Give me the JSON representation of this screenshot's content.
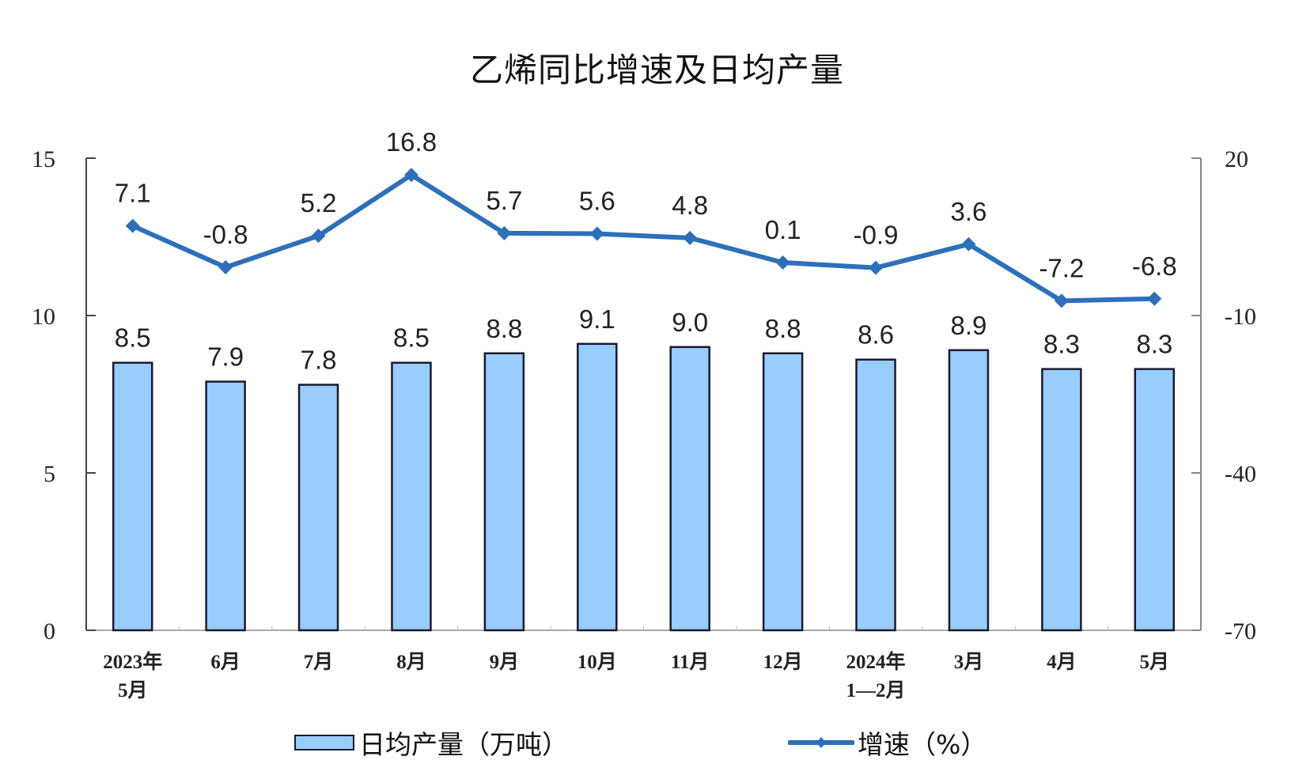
{
  "title": "乙烯同比增速及日均产量",
  "colors": {
    "bar_fill": "#99ccff",
    "bar_stroke": "#1a1a2e",
    "line": "#2e6fba",
    "axis": "#444444",
    "text": "#222222"
  },
  "legend": {
    "bar_label": "日均产量（万吨）",
    "line_label": "增速（%）"
  },
  "chart_data": {
    "type": "bar+line",
    "title": "乙烯同比增速及日均产量",
    "categories": [
      "2023年\n5月",
      "6月",
      "7月",
      "8月",
      "9月",
      "10月",
      "11月",
      "12月",
      "2024年\n1—2月",
      "3月",
      "4月",
      "5月"
    ],
    "series": [
      {
        "name": "日均产量（万吨）",
        "type": "bar",
        "axis": "left",
        "values": [
          8.5,
          7.9,
          7.8,
          8.5,
          8.8,
          9.1,
          9.0,
          8.8,
          8.6,
          8.9,
          8.3,
          8.3
        ],
        "labels": [
          "8.5",
          "7.9",
          "7.8",
          "8.5",
          "8.8",
          "9.1",
          "9.0",
          "8.8",
          "8.6",
          "8.9",
          "8.3",
          "8.3"
        ]
      },
      {
        "name": "增速（%）",
        "type": "line",
        "axis": "right",
        "values": [
          7.1,
          -0.8,
          5.2,
          16.8,
          5.7,
          5.6,
          4.8,
          0.1,
          -0.9,
          3.6,
          -7.2,
          -6.8
        ],
        "labels": [
          "7.1",
          "-0.8",
          "5.2",
          "16.8",
          "5.7",
          "5.6",
          "4.8",
          "0.1",
          "-0.9",
          "3.6",
          "-7.2",
          "-6.8"
        ]
      }
    ],
    "left_axis": {
      "min": 0,
      "max": 15,
      "ticks": [
        "0",
        "5",
        "10",
        "15"
      ]
    },
    "right_axis": {
      "min": -70,
      "max": 20,
      "ticks": [
        "-70",
        "-40",
        "-10",
        "20"
      ]
    },
    "xlabel": "",
    "ylabel_left": "",
    "ylabel_right": "",
    "grid": false,
    "legend_position": "bottom"
  }
}
